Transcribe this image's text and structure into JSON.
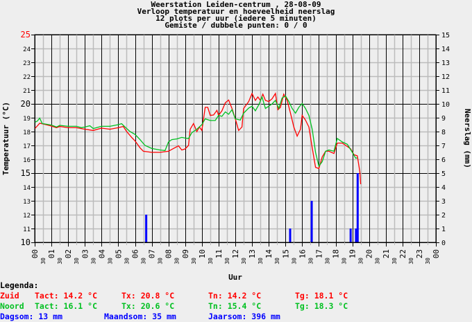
{
  "title_lines": [
    "Weerstation Leiden-centrum , 28-08-09",
    "Verloop temperatuur en hoeveelheid neerslag",
    "12 plots per uur (iedere 5 minuten)",
    "Gemiste / dubbele punten: 0 / 0"
  ],
  "legend": {
    "heading": "Legenda:",
    "rows": [
      {
        "name": "Zuid",
        "color": "#ff0000",
        "tact": "Tact: 14.2 °C",
        "tx": "Tx: 20.8 °C",
        "tn": "Tn: 14.2 °C",
        "tg": "Tg: 18.1 °C"
      },
      {
        "name": "Noord",
        "color": "#00c020",
        "tact": "Tact: 16.1 °C",
        "tx": "Tx: 20.6 °C",
        "tn": "Tn: 15.4 °C",
        "tg": "Tg: 18.3 °C"
      }
    ],
    "rain": {
      "color": "#0000ff",
      "dagsom": "Dagsom: 13 mm",
      "maandsom": "Maandsom: 35 mm",
      "jaarsom": "Jaarsom: 396 mm"
    }
  },
  "chart_data": {
    "type": "line",
    "xlabel": "Uur",
    "ylabel": "Temperatuur (°C)",
    "y2label": "Neerslag (mm)",
    "xlim": [
      0,
      24
    ],
    "ylim": [
      10,
      25
    ],
    "y2lim": [
      0,
      15
    ],
    "grid": true,
    "y_ticks": [
      "10",
      "11",
      "12",
      "13",
      "14",
      "15",
      "16",
      "17",
      "18",
      "19",
      "20",
      "21",
      "22",
      "23",
      "24",
      "25"
    ],
    "y_top_tick_color": "#ff0000",
    "y2_ticks": [
      "0",
      "1",
      "2",
      "3",
      "4",
      "5",
      "6",
      "7",
      "8",
      "9",
      "10",
      "11",
      "12",
      "13",
      "14",
      "15"
    ],
    "x_hour_labels": [
      "00",
      "01",
      "02",
      "03",
      "04",
      "05",
      "06",
      "07",
      "08",
      "09",
      "10",
      "11",
      "12",
      "13",
      "14",
      "15",
      "16",
      "17",
      "18",
      "19",
      "20",
      "21",
      "22",
      "23",
      "00"
    ],
    "x_half_label": "30",
    "series": [
      {
        "name": "Zuid",
        "color": "#ff0000",
        "points": [
          [
            0,
            18.2
          ],
          [
            0.15,
            18.4
          ],
          [
            0.3,
            18.6
          ],
          [
            0.5,
            18.55
          ],
          [
            1,
            18.4
          ],
          [
            1.3,
            18.28
          ],
          [
            1.5,
            18.37
          ],
          [
            2,
            18.28
          ],
          [
            2.5,
            18.28
          ],
          [
            3,
            18.17
          ],
          [
            3.5,
            18.08
          ],
          [
            4,
            18.25
          ],
          [
            4.5,
            18.17
          ],
          [
            5,
            18.28
          ],
          [
            5.3,
            18.37
          ],
          [
            5.5,
            18.0
          ],
          [
            5.8,
            17.58
          ],
          [
            6,
            17.33
          ],
          [
            6.3,
            16.83
          ],
          [
            6.5,
            16.58
          ],
          [
            7,
            16.5
          ],
          [
            7.5,
            16.5
          ],
          [
            8,
            16.58
          ],
          [
            8.3,
            16.78
          ],
          [
            8.6,
            16.97
          ],
          [
            8.8,
            16.67
          ],
          [
            9,
            16.75
          ],
          [
            9.2,
            17.0
          ],
          [
            9.3,
            18.17
          ],
          [
            9.5,
            18.58
          ],
          [
            9.7,
            18.0
          ],
          [
            9.85,
            18.33
          ],
          [
            10,
            18.08
          ],
          [
            10.2,
            19.75
          ],
          [
            10.35,
            19.75
          ],
          [
            10.5,
            19.17
          ],
          [
            10.7,
            19.2
          ],
          [
            10.9,
            19.53
          ],
          [
            11,
            19.17
          ],
          [
            11.2,
            19.5
          ],
          [
            11.4,
            20.08
          ],
          [
            11.6,
            20.28
          ],
          [
            11.8,
            19.67
          ],
          [
            12,
            18.92
          ],
          [
            12.2,
            18.08
          ],
          [
            12.4,
            18.33
          ],
          [
            12.5,
            19.67
          ],
          [
            12.8,
            20.17
          ],
          [
            13,
            20.75
          ],
          [
            13.2,
            20.25
          ],
          [
            13.35,
            20.5
          ],
          [
            13.5,
            20.25
          ],
          [
            13.65,
            20.7
          ],
          [
            13.8,
            20.25
          ],
          [
            14,
            20.17
          ],
          [
            14.2,
            20.37
          ],
          [
            14.4,
            20.75
          ],
          [
            14.55,
            19.58
          ],
          [
            14.7,
            19.75
          ],
          [
            14.9,
            20.7
          ],
          [
            15.1,
            20.25
          ],
          [
            15.3,
            19.33
          ],
          [
            15.5,
            18.33
          ],
          [
            15.7,
            17.67
          ],
          [
            15.9,
            18.17
          ],
          [
            16,
            19.17
          ],
          [
            16.2,
            18.83
          ],
          [
            16.4,
            18.33
          ],
          [
            16.6,
            16.83
          ],
          [
            16.8,
            15.42
          ],
          [
            17,
            15.33
          ],
          [
            17.2,
            16.17
          ],
          [
            17.4,
            16.58
          ],
          [
            17.6,
            16.58
          ],
          [
            17.9,
            16.42
          ],
          [
            18.1,
            17.17
          ],
          [
            18.4,
            17.17
          ],
          [
            18.7,
            16.92
          ],
          [
            18.9,
            16.75
          ],
          [
            19.1,
            16.33
          ],
          [
            19.3,
            16.25
          ],
          [
            19.45,
            15.1
          ],
          [
            19.5,
            14.2
          ]
        ]
      },
      {
        "name": "Noord",
        "color": "#00c020",
        "points": [
          [
            0,
            18.67
          ],
          [
            0.15,
            18.75
          ],
          [
            0.3,
            18.97
          ],
          [
            0.45,
            18.58
          ],
          [
            0.7,
            18.53
          ],
          [
            1,
            18.47
          ],
          [
            1.3,
            18.33
          ],
          [
            1.5,
            18.45
          ],
          [
            2,
            18.38
          ],
          [
            2.5,
            18.38
          ],
          [
            2.8,
            18.28
          ],
          [
            3,
            18.33
          ],
          [
            3.3,
            18.42
          ],
          [
            3.5,
            18.22
          ],
          [
            4,
            18.38
          ],
          [
            4.5,
            18.38
          ],
          [
            5,
            18.5
          ],
          [
            5.2,
            18.57
          ],
          [
            5.4,
            18.33
          ],
          [
            5.7,
            18.0
          ],
          [
            6,
            17.8
          ],
          [
            6.3,
            17.42
          ],
          [
            6.6,
            17.0
          ],
          [
            7,
            16.78
          ],
          [
            7.5,
            16.67
          ],
          [
            7.8,
            16.63
          ],
          [
            8,
            17.25
          ],
          [
            8.2,
            17.42
          ],
          [
            8.5,
            17.47
          ],
          [
            8.8,
            17.58
          ],
          [
            9,
            17.53
          ],
          [
            9.2,
            17.5
          ],
          [
            9.4,
            17.92
          ],
          [
            9.7,
            18.17
          ],
          [
            10,
            18.5
          ],
          [
            10.2,
            18.92
          ],
          [
            10.5,
            18.8
          ],
          [
            10.8,
            18.8
          ],
          [
            11,
            19.17
          ],
          [
            11.2,
            19.1
          ],
          [
            11.4,
            19.42
          ],
          [
            11.6,
            19.25
          ],
          [
            11.8,
            19.58
          ],
          [
            12,
            18.92
          ],
          [
            12.3,
            18.83
          ],
          [
            12.5,
            19.33
          ],
          [
            12.8,
            19.7
          ],
          [
            13,
            19.83
          ],
          [
            13.2,
            19.5
          ],
          [
            13.4,
            19.92
          ],
          [
            13.6,
            20.5
          ],
          [
            13.8,
            19.67
          ],
          [
            14,
            19.83
          ],
          [
            14.2,
            20.0
          ],
          [
            14.4,
            20.25
          ],
          [
            14.6,
            19.67
          ],
          [
            14.8,
            20.42
          ],
          [
            15,
            20.58
          ],
          [
            15.2,
            20.17
          ],
          [
            15.4,
            19.67
          ],
          [
            15.6,
            19.33
          ],
          [
            15.8,
            19.75
          ],
          [
            16,
            20.03
          ],
          [
            16.2,
            19.67
          ],
          [
            16.4,
            19.17
          ],
          [
            16.6,
            18.17
          ],
          [
            16.8,
            16.5
          ],
          [
            17,
            15.5
          ],
          [
            17.2,
            15.83
          ],
          [
            17.4,
            16.58
          ],
          [
            17.6,
            16.67
          ],
          [
            17.9,
            16.58
          ],
          [
            18.1,
            17.5
          ],
          [
            18.4,
            17.25
          ],
          [
            18.7,
            17.08
          ],
          [
            19,
            16.5
          ],
          [
            19.2,
            16.08
          ],
          [
            19.3,
            16.1
          ]
        ]
      }
    ],
    "precipitation": {
      "color": "#0000ff",
      "bars": [
        [
          6.67,
          2
        ],
        [
          15.28,
          1
        ],
        [
          16.57,
          3
        ],
        [
          18.9,
          1
        ],
        [
          19.22,
          1
        ],
        [
          19.32,
          5
        ]
      ]
    }
  }
}
